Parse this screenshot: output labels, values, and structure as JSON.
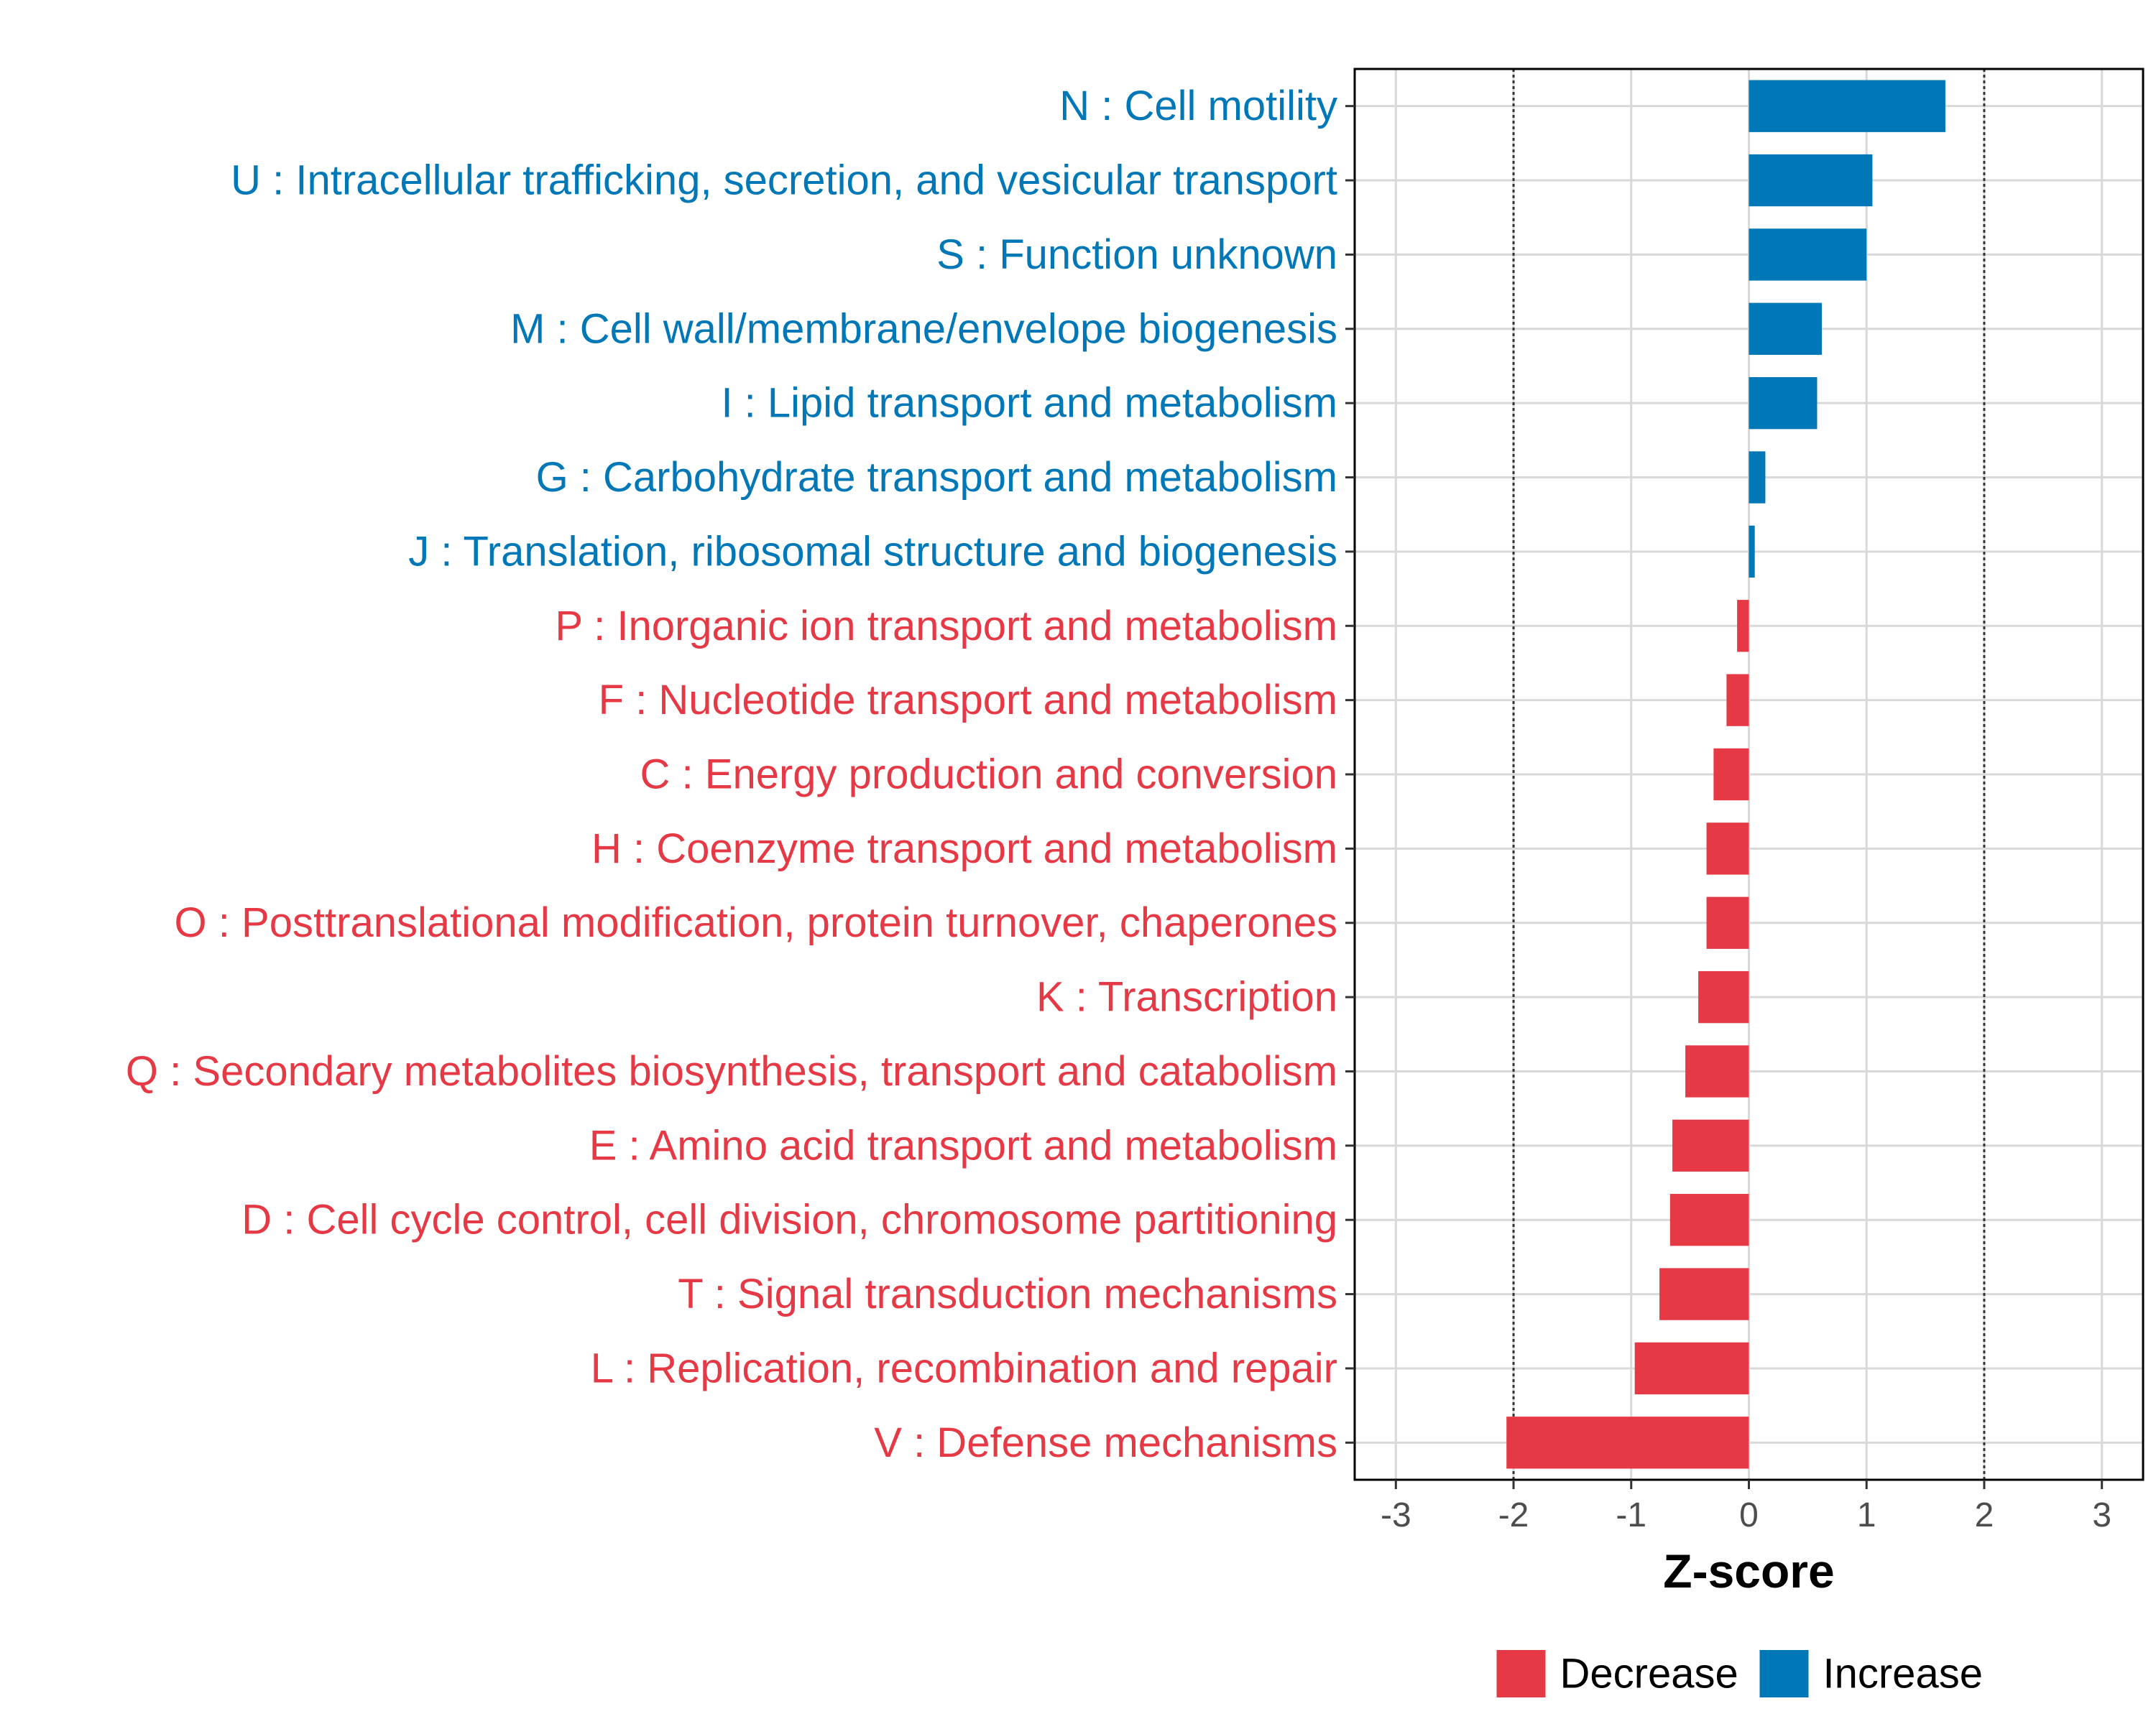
{
  "chart_data": {
    "type": "bar",
    "orientation": "horizontal",
    "xlabel": "Z-score",
    "ylabel": "",
    "xlim": [
      -3.35,
      3.35
    ],
    "xticks": [
      -3,
      -2,
      -1,
      0,
      1,
      2,
      3
    ],
    "xtick_labels": [
      "-3",
      "-2",
      "-1",
      "0",
      "1",
      "2",
      "3"
    ],
    "reference_lines": [
      -2,
      2
    ],
    "grid": true,
    "categories": [
      "N : Cell motility",
      "U : Intracellular trafficking, secretion, and vesicular transport",
      "S : Function unknown",
      "M : Cell wall/membrane/envelope biogenesis",
      "I : Lipid transport and metabolism",
      "G : Carbohydrate transport and metabolism",
      "J : Translation, ribosomal structure and biogenesis",
      "P : Inorganic ion transport and metabolism",
      "F : Nucleotide transport and metabolism",
      "C : Energy production and conversion",
      "H : Coenzyme transport and metabolism",
      "O : Posttranslational modification, protein turnover, chaperones",
      "K : Transcription",
      "Q : Secondary metabolites biosynthesis, transport and catabolism",
      "E : Amino acid transport and metabolism",
      "D : Cell cycle control, cell division, chromosome partitioning",
      "T : Signal transduction mechanisms",
      "L : Replication, recombination and repair",
      "V : Defense mechanisms"
    ],
    "values": [
      1.67,
      1.05,
      1.0,
      0.62,
      0.58,
      0.14,
      0.05,
      -0.1,
      -0.19,
      -0.3,
      -0.36,
      -0.36,
      -0.43,
      -0.54,
      -0.65,
      -0.67,
      -0.76,
      -0.97,
      -2.06
    ],
    "groups": [
      "Increase",
      "Increase",
      "Increase",
      "Increase",
      "Increase",
      "Increase",
      "Increase",
      "Decrease",
      "Decrease",
      "Decrease",
      "Decrease",
      "Decrease",
      "Decrease",
      "Decrease",
      "Decrease",
      "Decrease",
      "Decrease",
      "Decrease",
      "Decrease"
    ],
    "legend": {
      "position": "bottom",
      "entries": [
        {
          "label": "Decrease",
          "color": "#e63946"
        },
        {
          "label": "Increase",
          "color": "#0077b6"
        }
      ]
    }
  },
  "colors": {
    "increase": "#0077b6",
    "decrease": "#e63946",
    "grid": "#d9d9d9",
    "panel_border": "#000000"
  }
}
